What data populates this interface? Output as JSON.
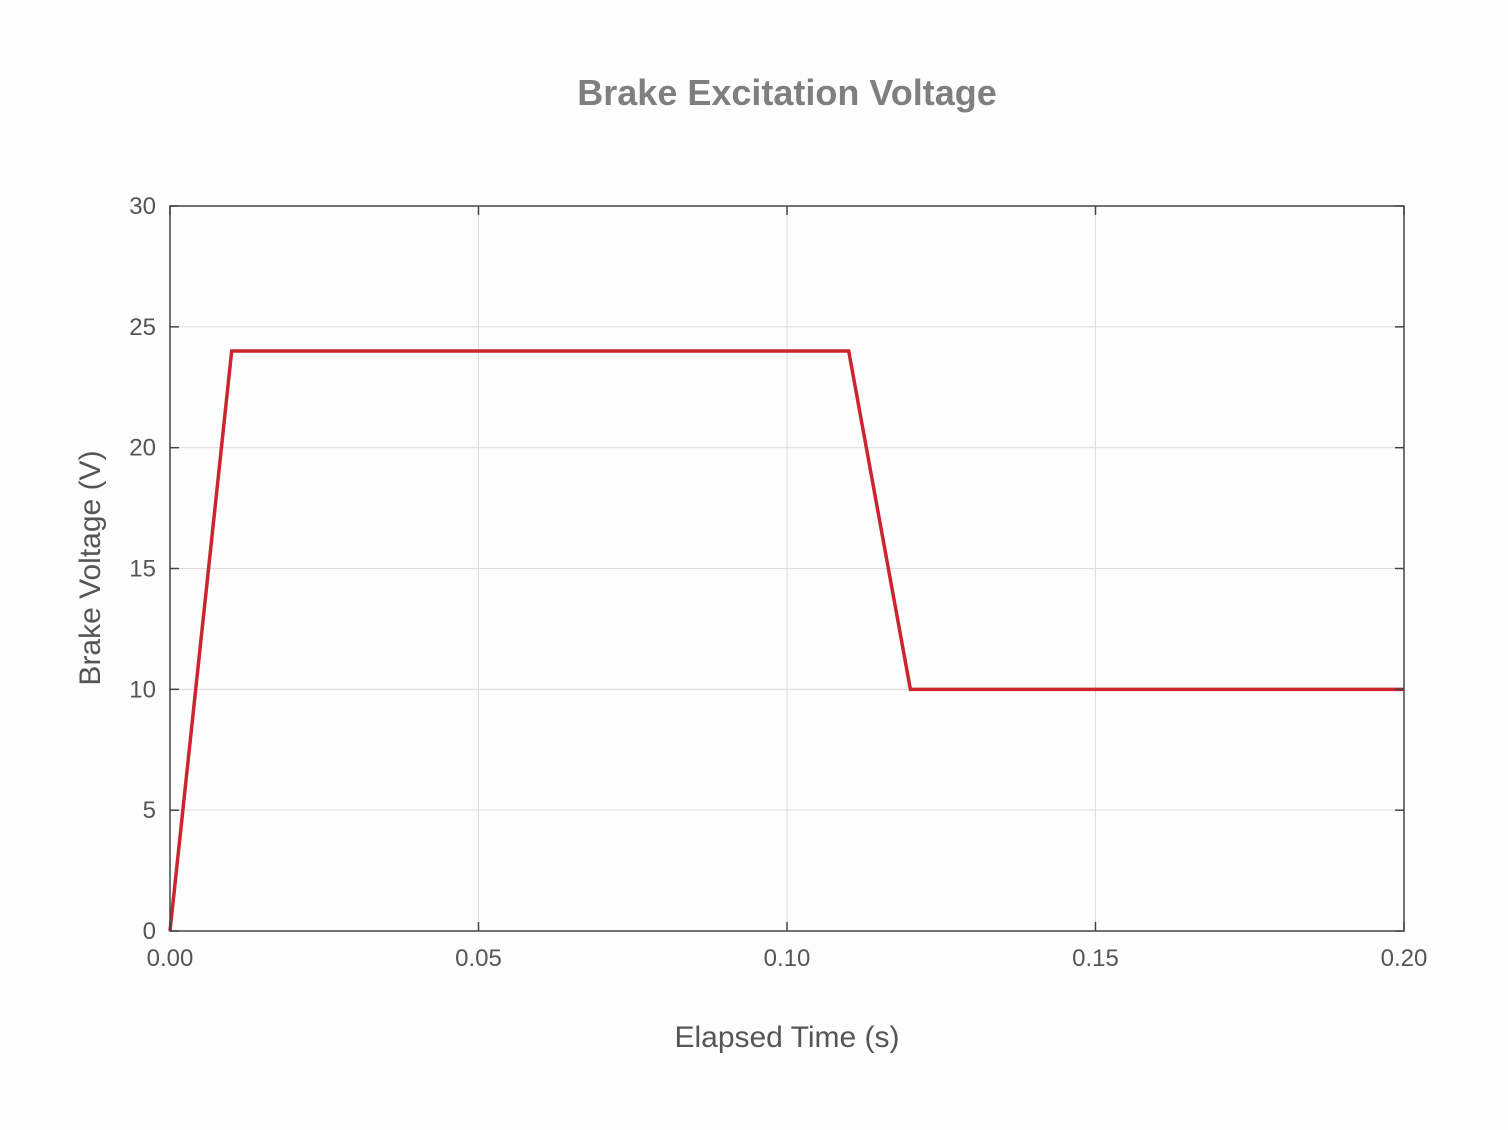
{
  "chart_data": {
    "type": "line",
    "title": "Brake Excitation Voltage",
    "xlabel": "Elapsed Time (s)",
    "ylabel": "Brake Voltage (V)",
    "xlim": [
      0,
      0.2
    ],
    "ylim": [
      0,
      30
    ],
    "x_ticks": [
      0,
      0.05,
      0.1,
      0.15,
      0.2
    ],
    "x_tick_labels": [
      "0.00",
      "0.05",
      "0.10",
      "0.15",
      "0.20"
    ],
    "y_ticks": [
      0,
      5,
      10,
      15,
      20,
      25,
      30
    ],
    "y_tick_labels": [
      "0",
      "5",
      "10",
      "15",
      "20",
      "25",
      "30"
    ],
    "grid": true,
    "legend": "none",
    "series": [
      {
        "color": "#cc2530",
        "x": [
          0,
          0.01,
          0.11,
          0.12,
          0.2
        ],
        "y": [
          0,
          24,
          24,
          10,
          10
        ]
      }
    ]
  }
}
